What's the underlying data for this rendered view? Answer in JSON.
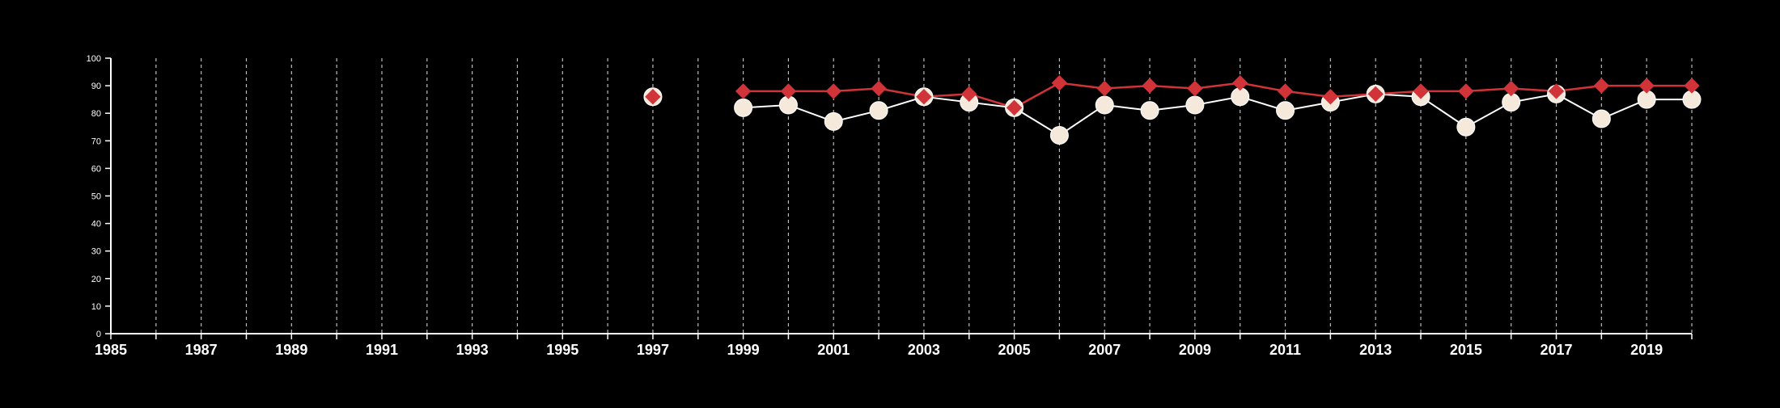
{
  "colors": {
    "background": "#000000",
    "axis": "#ffffff",
    "grid": "#bbbbbb",
    "series_circle_fill": "#f5e9dc",
    "series_circle_line": "#ffffff",
    "series_diamond": "#d13438"
  },
  "chart_data": {
    "type": "line",
    "title": "",
    "xlabel": "",
    "ylabel": "",
    "xlim": [
      1985,
      2020
    ],
    "ylim": [
      0,
      100
    ],
    "y_ticks": [
      0,
      10,
      20,
      30,
      40,
      50,
      60,
      70,
      80,
      90,
      100
    ],
    "x_ticks_major": [
      1985,
      1987,
      1989,
      1991,
      1993,
      1995,
      1997,
      1999,
      2001,
      2003,
      2005,
      2007,
      2009,
      2011,
      2013,
      2015,
      2017,
      2019
    ],
    "x_ticks_all": [
      1985,
      1986,
      1987,
      1988,
      1989,
      1990,
      1991,
      1992,
      1993,
      1994,
      1995,
      1996,
      1997,
      1998,
      1999,
      2000,
      2001,
      2002,
      2003,
      2004,
      2005,
      2006,
      2007,
      2008,
      2009,
      2010,
      2011,
      2012,
      2013,
      2014,
      2015,
      2016,
      2017,
      2018,
      2019,
      2020
    ],
    "grid": "vertical dashed at each year",
    "legend": "none",
    "series": [
      {
        "marker": "circle",
        "x": [
          1997,
          1999,
          2000,
          2001,
          2002,
          2003,
          2004,
          2005,
          2006,
          2007,
          2008,
          2009,
          2010,
          2011,
          2012,
          2013,
          2014,
          2015,
          2016,
          2017,
          2018,
          2019,
          2020
        ],
        "y": [
          86,
          82,
          83,
          77,
          81,
          86,
          84,
          82,
          72,
          83,
          81,
          83,
          86,
          81,
          84,
          87,
          86,
          75,
          84,
          87,
          78,
          85,
          85
        ]
      },
      {
        "marker": "diamond",
        "x": [
          1997,
          1999,
          2000,
          2001,
          2002,
          2003,
          2004,
          2005,
          2006,
          2007,
          2008,
          2009,
          2010,
          2011,
          2012,
          2013,
          2014,
          2015,
          2016,
          2017,
          2018,
          2019,
          2020
        ],
        "y": [
          86,
          88,
          88,
          88,
          89,
          86,
          87,
          82,
          91,
          89,
          90,
          89,
          91,
          88,
          86,
          87,
          88,
          88,
          89,
          88,
          90,
          90,
          90
        ]
      }
    ]
  }
}
